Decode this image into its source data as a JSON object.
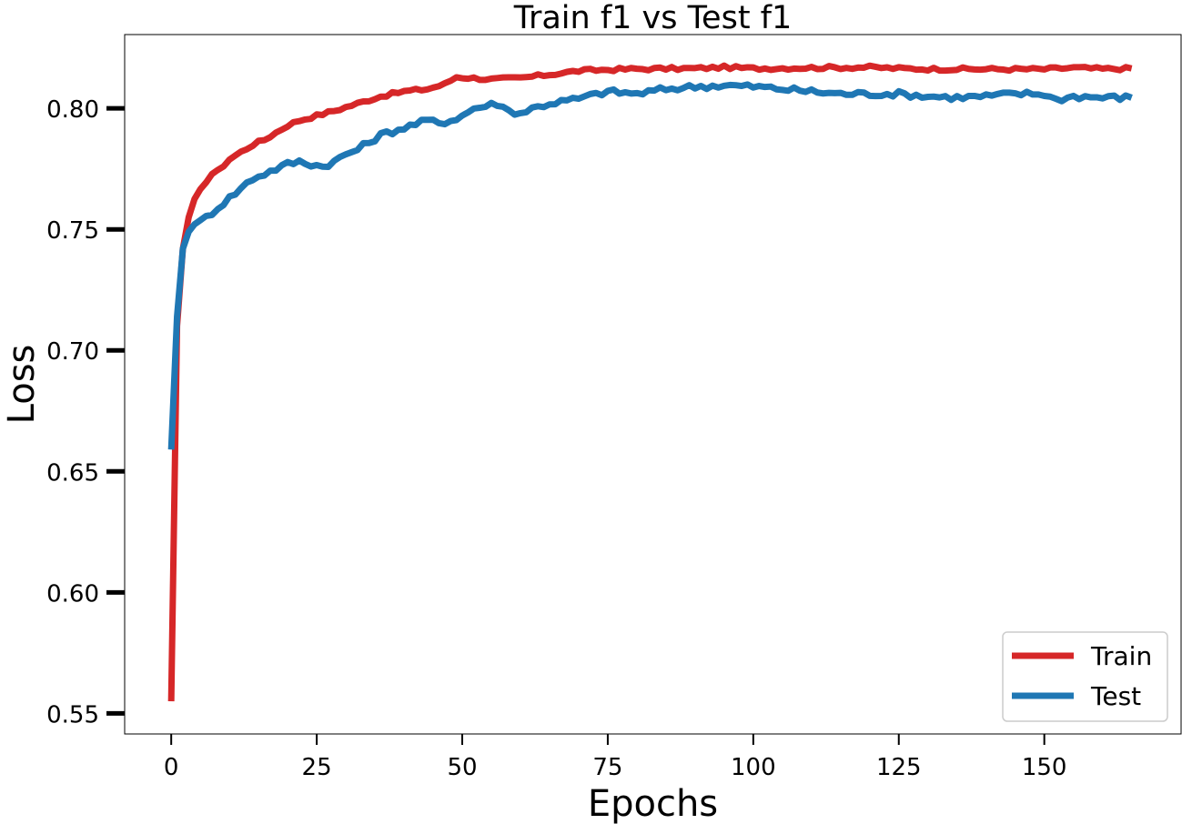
{
  "chart_data": {
    "type": "line",
    "title": "Train f1 vs Test f1",
    "xlabel": "Epochs",
    "ylabel": "Loss",
    "xlim": [
      -8,
      173.5
    ],
    "ylim": [
      0.5415,
      0.8305
    ],
    "xticks": [
      0,
      25,
      50,
      75,
      100,
      125,
      150
    ],
    "yticks": [
      0.55,
      0.6,
      0.65,
      0.7,
      0.75,
      0.8
    ],
    "ytick_labels": [
      "0.55",
      "0.60",
      "0.65",
      "0.70",
      "0.75",
      "0.80"
    ],
    "grid": false,
    "legend_position": "lower-right",
    "series": [
      {
        "name": "Train",
        "color": "#d62728",
        "keypoints": [
          [
            0,
            0.555
          ],
          [
            1,
            0.71
          ],
          [
            2,
            0.742
          ],
          [
            3,
            0.755
          ],
          [
            4,
            0.762
          ],
          [
            5,
            0.766
          ],
          [
            6,
            0.77
          ],
          [
            7,
            0.773
          ],
          [
            8,
            0.774
          ],
          [
            10,
            0.779
          ],
          [
            12,
            0.782
          ],
          [
            14,
            0.785
          ],
          [
            16,
            0.787
          ],
          [
            18,
            0.79
          ],
          [
            20,
            0.793
          ],
          [
            22,
            0.795
          ],
          [
            25,
            0.797
          ],
          [
            28,
            0.799
          ],
          [
            32,
            0.802
          ],
          [
            36,
            0.805
          ],
          [
            40,
            0.807
          ],
          [
            44,
            0.808
          ],
          [
            47,
            0.81
          ],
          [
            49,
            0.813
          ],
          [
            52,
            0.8125
          ],
          [
            55,
            0.812
          ],
          [
            60,
            0.8125
          ],
          [
            65,
            0.814
          ],
          [
            70,
            0.8155
          ],
          [
            75,
            0.816
          ],
          [
            80,
            0.8163
          ],
          [
            90,
            0.8165
          ],
          [
            95,
            0.817
          ],
          [
            100,
            0.8165
          ],
          [
            110,
            0.8168
          ],
          [
            120,
            0.817
          ],
          [
            125,
            0.8165
          ],
          [
            130,
            0.8163
          ],
          [
            140,
            0.8162
          ],
          [
            150,
            0.8162
          ],
          [
            155,
            0.8168
          ],
          [
            160,
            0.8163
          ],
          [
            165,
            0.8165
          ]
        ],
        "noise": 0.0007
      },
      {
        "name": "Test",
        "color": "#1f77b4",
        "keypoints": [
          [
            0,
            0.659
          ],
          [
            1,
            0.714
          ],
          [
            2,
            0.742
          ],
          [
            3,
            0.749
          ],
          [
            4,
            0.753
          ],
          [
            5,
            0.753
          ],
          [
            6,
            0.755
          ],
          [
            8,
            0.759
          ],
          [
            10,
            0.763
          ],
          [
            12,
            0.767
          ],
          [
            14,
            0.771
          ],
          [
            16,
            0.773
          ],
          [
            18,
            0.775
          ],
          [
            20,
            0.777
          ],
          [
            22,
            0.778
          ],
          [
            24,
            0.777
          ],
          [
            26,
            0.776
          ],
          [
            28,
            0.778
          ],
          [
            30,
            0.781
          ],
          [
            32,
            0.783
          ],
          [
            34,
            0.786
          ],
          [
            36,
            0.789
          ],
          [
            40,
            0.792
          ],
          [
            44,
            0.795
          ],
          [
            46,
            0.794
          ],
          [
            48,
            0.795
          ],
          [
            50,
            0.797
          ],
          [
            52,
            0.8
          ],
          [
            56,
            0.802
          ],
          [
            58,
            0.799
          ],
          [
            60,
            0.798
          ],
          [
            62,
            0.8
          ],
          [
            65,
            0.802
          ],
          [
            70,
            0.804
          ],
          [
            75,
            0.807
          ],
          [
            80,
            0.806
          ],
          [
            85,
            0.808
          ],
          [
            90,
            0.809
          ],
          [
            95,
            0.8095
          ],
          [
            100,
            0.809
          ],
          [
            105,
            0.808
          ],
          [
            110,
            0.807
          ],
          [
            115,
            0.806
          ],
          [
            120,
            0.806
          ],
          [
            125,
            0.806
          ],
          [
            130,
            0.805
          ],
          [
            135,
            0.8045
          ],
          [
            140,
            0.805
          ],
          [
            145,
            0.806
          ],
          [
            150,
            0.806
          ],
          [
            152,
            0.8035
          ],
          [
            155,
            0.805
          ],
          [
            160,
            0.8045
          ],
          [
            165,
            0.8045
          ]
        ],
        "noise": 0.0012
      }
    ]
  }
}
